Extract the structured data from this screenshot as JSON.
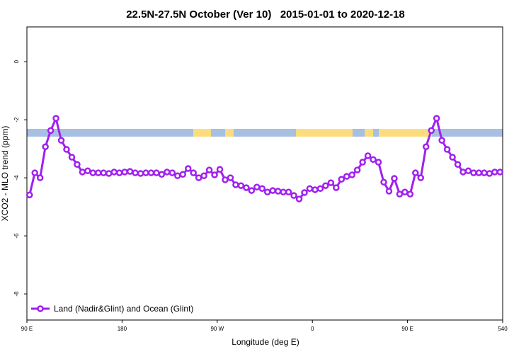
{
  "chart_data": {
    "type": "line",
    "title": "22.5N-27.5N October (Ver 10)   2015-01-01 to 2020-12-18",
    "xlabel": "Longitude (deg E)",
    "ylabel": "XCO2 - MLO trend (ppm)",
    "x": [
      92.5,
      97.5,
      102.5,
      107.5,
      112.5,
      117.5,
      122.5,
      127.5,
      132.5,
      137.5,
      142.5,
      147.5,
      152.5,
      157.5,
      162.5,
      167.5,
      172.5,
      177.5,
      182.5,
      187.5,
      192.5,
      197.5,
      202.5,
      207.5,
      212.5,
      217.5,
      222.5,
      227.5,
      232.5,
      237.5,
      242.5,
      247.5,
      252.5,
      257.5,
      262.5,
      267.5,
      272.5,
      277.5,
      282.5,
      287.5,
      292.5,
      297.5,
      302.5,
      307.5,
      312.5,
      317.5,
      322.5,
      327.5,
      332.5,
      337.5,
      342.5,
      347.5,
      352.5,
      357.5,
      362.5,
      367.5,
      372.5,
      377.5,
      382.5,
      387.5,
      392.5,
      397.5,
      402.5,
      407.5,
      412.5,
      417.5,
      422.5,
      427.5,
      432.5,
      437.5,
      442.5,
      447.5,
      452.5,
      457.5,
      462.5,
      467.5,
      472.5,
      477.5,
      482.5,
      487.5,
      492.5,
      497.5,
      502.5,
      507.5,
      512.5,
      517.5,
      522.5,
      527.5,
      532.5,
      537.5
    ],
    "series": [
      {
        "name": "Land (Nadir&Glint) and Ocean (Glint)",
        "color": "#a020f0",
        "values": [
          -4.59,
          -3.83,
          -4.0,
          -2.93,
          -2.37,
          -1.95,
          -2.71,
          -3.02,
          -3.29,
          -3.54,
          -3.8,
          -3.76,
          -3.83,
          -3.83,
          -3.83,
          -3.85,
          -3.8,
          -3.83,
          -3.8,
          -3.78,
          -3.83,
          -3.85,
          -3.83,
          -3.83,
          -3.83,
          -3.88,
          -3.8,
          -3.83,
          -3.93,
          -3.88,
          -3.68,
          -3.83,
          -4.0,
          -3.93,
          -3.73,
          -3.9,
          -3.71,
          -4.07,
          -4.0,
          -4.24,
          -4.27,
          -4.34,
          -4.44,
          -4.32,
          -4.37,
          -4.49,
          -4.44,
          -4.46,
          -4.49,
          -4.49,
          -4.61,
          -4.73,
          -4.51,
          -4.37,
          -4.41,
          -4.37,
          -4.27,
          -4.17,
          -4.34,
          -4.05,
          -3.95,
          -3.9,
          -3.73,
          -3.46,
          -3.24,
          -3.37,
          -3.46,
          -4.15,
          -4.46,
          -4.02,
          -4.56,
          -4.49,
          -4.56,
          -3.83,
          -4.0,
          -2.93,
          -2.37,
          -1.95,
          -2.71,
          -3.02,
          -3.29,
          -3.54,
          -3.8,
          -3.76,
          -3.83,
          -3.83,
          -3.83,
          -3.85,
          -3.8,
          -3.8
        ]
      }
    ],
    "xlim": [
      90,
      540
    ],
    "xticks": [
      {
        "value": 90,
        "label": "90 E"
      },
      180,
      {
        "value": 270,
        "label": "90 W"
      },
      {
        "value": 360,
        "label": "0"
      },
      {
        "value": 450,
        "label": "90 E"
      },
      540
    ],
    "ylim": [
      -8.9,
      1.2
    ],
    "yticks": [
      0,
      -2,
      -4,
      -6,
      -8
    ],
    "legend": "bottom-left"
  }
}
